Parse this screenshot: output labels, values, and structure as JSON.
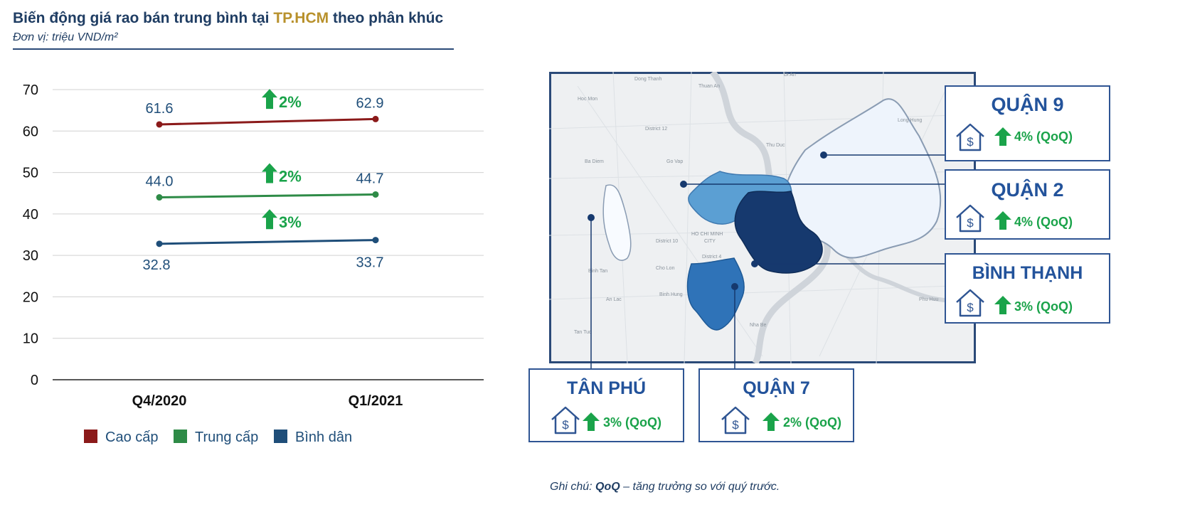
{
  "title": {
    "prefix": "Biến động giá rao bán trung bình tại ",
    "highlight": "TP.HCM",
    "suffix": " theo phân khúc"
  },
  "unit": "Đơn vị: triệu VND/m²",
  "colors": {
    "cao_cap": "#8b1a1a",
    "trung_cap": "#2e8b47",
    "binh_dan": "#1f4e79",
    "growth_green": "#1aa34a",
    "box_border": "#2f5593",
    "district_name": "#23539b"
  },
  "chart_data": {
    "type": "line",
    "categories": [
      "Q4/2020",
      "Q1/2021"
    ],
    "ylim": [
      0,
      70
    ],
    "yticks": [
      0,
      10,
      20,
      30,
      40,
      50,
      60,
      70
    ],
    "grid": true,
    "legend_position": "bottom",
    "series": [
      {
        "name": "Cao cấp",
        "values": [
          61.6,
          62.9
        ],
        "labels": [
          "61.6",
          "62.9"
        ],
        "growth": "2%",
        "color": "#8b1a1a"
      },
      {
        "name": "Trung cấp",
        "values": [
          44.0,
          44.7
        ],
        "labels": [
          "44.0",
          "44.7"
        ],
        "growth": "2%",
        "color": "#2e8b47"
      },
      {
        "name": "Bình dân",
        "values": [
          32.8,
          33.7
        ],
        "labels": [
          "32.8",
          "33.7"
        ],
        "growth": "3%",
        "color": "#1f4e79"
      }
    ]
  },
  "map": {
    "labels": [
      "Dong Thanh",
      "Thuan An",
      "Di An",
      "Hoc Mon",
      "District 12",
      "Thu Duc",
      "Go Vap",
      "Ba Diem",
      "District 10",
      "HO CHI MINH",
      "CITY",
      "District 4",
      "Binh Tan",
      "Cho Lon",
      "Binh Hung",
      "An Lac",
      "Tan Tuc",
      "Nha Be",
      "Phu Huu",
      "Long Hung"
    ]
  },
  "districts": [
    {
      "name": "QUẬN 9",
      "growth": "4% (QoQ)"
    },
    {
      "name": "QUẬN 2",
      "growth": "4% (QoQ)"
    },
    {
      "name": "BÌNH THẠNH",
      "growth": "3% (QoQ)"
    },
    {
      "name": "TÂN PHÚ",
      "growth": "3% (QoQ)"
    },
    {
      "name": "QUẬN 7",
      "growth": "2% (QoQ)"
    }
  ],
  "note": {
    "prefix": "Ghi chú: ",
    "term": "QoQ",
    "suffix": " – tăng trưởng so với quý trước."
  }
}
